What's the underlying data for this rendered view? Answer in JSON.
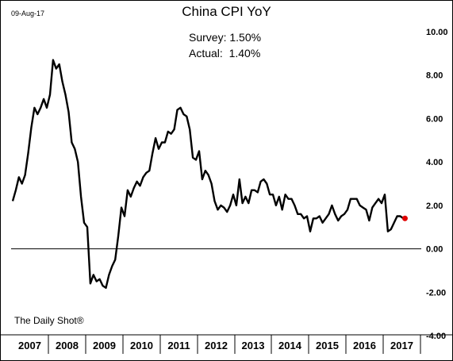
{
  "header": {
    "date": "09-Aug-17",
    "survey": "Survey: 1.50%",
    "actual": "Actual:  1.40%"
  },
  "footer": {
    "source": "The Daily Shot®"
  },
  "colors": {
    "line": "#000000",
    "last_point": "#e00000",
    "zero_line": "#000000"
  },
  "chart_data": {
    "type": "line",
    "title": "China CPI YoY",
    "xlabel": "",
    "ylabel": "",
    "ylim": [
      -4,
      10
    ],
    "yticks": [
      "10.00",
      "8.00",
      "6.00",
      "4.00",
      "2.00",
      "0.00",
      "-2.00",
      "-4.00"
    ],
    "ytick_values": [
      10,
      8,
      6,
      4,
      2,
      0,
      -2,
      -4
    ],
    "xticks": [
      "2007",
      "2008",
      "2009",
      "2010",
      "2011",
      "2012",
      "2013",
      "2014",
      "2015",
      "2016",
      "2017"
    ],
    "x_range": [
      "2007-01",
      "2017-07"
    ],
    "grid": false,
    "legend": "none",
    "series": [
      {
        "x": [
          "2007-01",
          "2007-02",
          "2007-03",
          "2007-04",
          "2007-05",
          "2007-06",
          "2007-07",
          "2007-08",
          "2007-09",
          "2007-10",
          "2007-11",
          "2007-12",
          "2008-01",
          "2008-02",
          "2008-03",
          "2008-04",
          "2008-05",
          "2008-06",
          "2008-07",
          "2008-08",
          "2008-09",
          "2008-10",
          "2008-11",
          "2008-12",
          "2009-01",
          "2009-02",
          "2009-03",
          "2009-04",
          "2009-05",
          "2009-06",
          "2009-07",
          "2009-08",
          "2009-09",
          "2009-10",
          "2009-11",
          "2009-12",
          "2010-01",
          "2010-02",
          "2010-03",
          "2010-04",
          "2010-05",
          "2010-06",
          "2010-07",
          "2010-08",
          "2010-09",
          "2010-10",
          "2010-11",
          "2010-12",
          "2011-01",
          "2011-02",
          "2011-03",
          "2011-04",
          "2011-05",
          "2011-06",
          "2011-07",
          "2011-08",
          "2011-09",
          "2011-10",
          "2011-11",
          "2011-12",
          "2012-01",
          "2012-02",
          "2012-03",
          "2012-04",
          "2012-05",
          "2012-06",
          "2012-07",
          "2012-08",
          "2012-09",
          "2012-10",
          "2012-11",
          "2012-12",
          "2013-01",
          "2013-02",
          "2013-03",
          "2013-04",
          "2013-05",
          "2013-06",
          "2013-07",
          "2013-08",
          "2013-09",
          "2013-10",
          "2013-11",
          "2013-12",
          "2014-01",
          "2014-02",
          "2014-03",
          "2014-04",
          "2014-05",
          "2014-06",
          "2014-07",
          "2014-08",
          "2014-09",
          "2014-10",
          "2014-11",
          "2014-12",
          "2015-01",
          "2015-02",
          "2015-03",
          "2015-04",
          "2015-05",
          "2015-06",
          "2015-07",
          "2015-08",
          "2015-09",
          "2015-10",
          "2015-11",
          "2015-12",
          "2016-01",
          "2016-02",
          "2016-03",
          "2016-04",
          "2016-05",
          "2016-06",
          "2016-07",
          "2016-08",
          "2016-09",
          "2016-10",
          "2016-11",
          "2016-12",
          "2017-01",
          "2017-02",
          "2017-03",
          "2017-04",
          "2017-05",
          "2017-06",
          "2017-07"
        ],
        "values": [
          2.2,
          2.7,
          3.3,
          3.0,
          3.4,
          4.4,
          5.6,
          6.5,
          6.2,
          6.5,
          6.9,
          6.5,
          7.1,
          8.7,
          8.3,
          8.5,
          7.7,
          7.1,
          6.3,
          4.9,
          4.6,
          4.0,
          2.4,
          1.2,
          1.0,
          -1.6,
          -1.2,
          -1.5,
          -1.4,
          -1.7,
          -1.8,
          -1.2,
          -0.8,
          -0.5,
          0.6,
          1.9,
          1.5,
          2.7,
          2.4,
          2.8,
          3.1,
          2.9,
          3.3,
          3.5,
          3.6,
          4.4,
          5.1,
          4.6,
          4.9,
          4.9,
          5.4,
          5.3,
          5.5,
          6.4,
          6.5,
          6.2,
          6.1,
          5.5,
          4.2,
          4.1,
          4.5,
          3.2,
          3.6,
          3.4,
          3.0,
          2.2,
          1.8,
          2.0,
          1.9,
          1.7,
          2.0,
          2.5,
          2.0,
          3.2,
          2.1,
          2.4,
          2.1,
          2.7,
          2.7,
          2.6,
          3.1,
          3.2,
          3.0,
          2.5,
          2.5,
          2.0,
          2.4,
          1.8,
          2.5,
          2.3,
          2.3,
          2.0,
          1.6,
          1.6,
          1.4,
          1.5,
          0.8,
          1.4,
          1.4,
          1.5,
          1.2,
          1.4,
          1.6,
          2.0,
          1.6,
          1.3,
          1.5,
          1.6,
          1.8,
          2.3,
          2.3,
          2.3,
          2.0,
          1.9,
          1.8,
          1.3,
          1.9,
          2.1,
          2.3,
          2.1,
          2.5,
          0.8,
          0.9,
          1.2,
          1.5,
          1.5,
          1.4
        ]
      }
    ],
    "last_point": {
      "x": "2017-07",
      "value": 1.4
    }
  }
}
